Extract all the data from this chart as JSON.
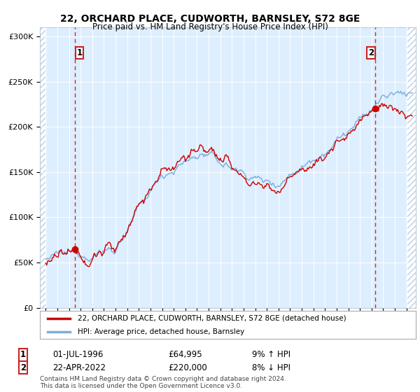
{
  "title1": "22, ORCHARD PLACE, CUDWORTH, BARNSLEY, S72 8GE",
  "title2": "Price paid vs. HM Land Registry's House Price Index (HPI)",
  "legend_label1": "22, ORCHARD PLACE, CUDWORTH, BARNSLEY, S72 8GE (detached house)",
  "legend_label2": "HPI: Average price, detached house, Barnsley",
  "annotation1_date": "01-JUL-1996",
  "annotation1_price": "£64,995",
  "annotation1_hpi": "9% ↑ HPI",
  "annotation2_date": "22-APR-2022",
  "annotation2_price": "£220,000",
  "annotation2_hpi": "8% ↓ HPI",
  "footnote1": "Contains HM Land Registry data © Crown copyright and database right 2024.",
  "footnote2": "This data is licensed under the Open Government Licence v3.0.",
  "bg_color": "#ddeeff",
  "hatch_color": "#b8cfe0",
  "line_color_red": "#cc0000",
  "line_color_blue": "#7aadda",
  "point1_x": 1996.5,
  "point1_y": 64995,
  "point2_x": 2022.33,
  "point2_y": 220000,
  "ylim": [
    0,
    310000
  ],
  "xlim_left": 1993.5,
  "xlim_right": 2025.8,
  "hatch_left_end": 1994.0,
  "hatch_right_start": 2025.0,
  "yticks": [
    0,
    50000,
    100000,
    150000,
    200000,
    250000,
    300000
  ],
  "ytick_labels": [
    "£0",
    "£50K",
    "£100K",
    "£150K",
    "£200K",
    "£250K",
    "£300K"
  ],
  "xticks": [
    1994,
    1995,
    1996,
    1997,
    1998,
    1999,
    2000,
    2001,
    2002,
    2003,
    2004,
    2005,
    2006,
    2007,
    2008,
    2009,
    2010,
    2011,
    2012,
    2013,
    2014,
    2015,
    2016,
    2017,
    2018,
    2019,
    2020,
    2021,
    2022,
    2023,
    2024,
    2025
  ]
}
